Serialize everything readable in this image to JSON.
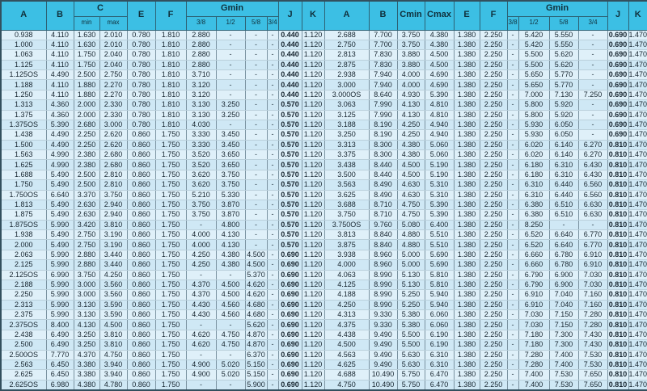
{
  "colors": {
    "header_bg": "#3cbfe4",
    "row_odd_bg": "#dff0f9",
    "row_even_bg": "#cfe8f5",
    "grid_vertical": "#7b93a1",
    "grid_horizontal": "#b9cfda",
    "outer_border": "#33505e",
    "text": "#16242e"
  },
  "table": {
    "header": {
      "left": {
        "a": "A",
        "b": "B",
        "c": "C",
        "c_min": "min",
        "c_max": "max",
        "e": "E",
        "f": "F",
        "gmin": "Gmin",
        "g38": "3/8",
        "g12": "1/2",
        "g58": "5/8",
        "g34": "3/4",
        "j": "J",
        "k": "K"
      },
      "right": {
        "a": "A",
        "b": "B",
        "cmin": "Cmin",
        "cmax": "Cmax",
        "e": "E",
        "f": "F",
        "gmin": "Gmin",
        "g38": "3/8",
        "g12": "1/2",
        "g58": "5/8",
        "g34": "3/4",
        "j": "J",
        "k": "K"
      }
    },
    "rows": [
      [
        "0.938",
        "4.110",
        "1.630",
        "2.010",
        "0.780",
        "1.810",
        "2.880",
        "-",
        "-",
        "-",
        "0.440",
        "1.120",
        "2.688",
        "7.700",
        "3.750",
        "4.380",
        "1.380",
        "2.250",
        "-",
        "5.420",
        "5.550",
        "-",
        "0.690",
        "1.470"
      ],
      [
        "1.000",
        "4.110",
        "1.630",
        "2.010",
        "0.780",
        "1.810",
        "2.880",
        "-",
        "-",
        "-",
        "0.440",
        "1.120",
        "2.750",
        "7.700",
        "3.750",
        "4.380",
        "1.380",
        "2.250",
        "-",
        "5.420",
        "5.550",
        "-",
        "0.690",
        "1.470"
      ],
      [
        "1.063",
        "4.110",
        "1.750",
        "2.040",
        "0.780",
        "1.810",
        "2.880",
        "-",
        "-",
        "-",
        "0.440",
        "1.120",
        "2.813",
        "7.830",
        "3.880",
        "4.500",
        "1.380",
        "2.250",
        "-",
        "5.500",
        "5.620",
        "-",
        "0.690",
        "1.470"
      ],
      [
        "1.125",
        "4.110",
        "1.750",
        "2.040",
        "0.780",
        "1.810",
        "2.880",
        "-",
        "-",
        "-",
        "0.440",
        "1.120",
        "2.875",
        "7.830",
        "3.880",
        "4.500",
        "1.380",
        "2.250",
        "-",
        "5.500",
        "5.620",
        "-",
        "0.690",
        "1.470"
      ],
      [
        "1.125OS",
        "4.490",
        "2.500",
        "2.750",
        "0.780",
        "1.810",
        "3.710",
        "-",
        "-",
        "-",
        "0.440",
        "1.120",
        "2.938",
        "7.940",
        "4.000",
        "4.690",
        "1.380",
        "2.250",
        "-",
        "5.650",
        "5.770",
        "-",
        "0.690",
        "1.470"
      ],
      [
        "1.188",
        "4.110",
        "1.880",
        "2.270",
        "0.780",
        "1.810",
        "3.120",
        "-",
        "-",
        "-",
        "0.440",
        "1.120",
        "3.000",
        "7.940",
        "4.000",
        "4.690",
        "1.380",
        "2.250",
        "-",
        "5.650",
        "5.770",
        "-",
        "0.690",
        "1.470"
      ],
      [
        "1.250",
        "4.110",
        "1.880",
        "2.270",
        "0.780",
        "1.810",
        "3.120",
        "-",
        "-",
        "-",
        "0.440",
        "1.120",
        "3.000OS",
        "8.640",
        "4.930",
        "5.390",
        "1.380",
        "2.250",
        "-",
        "7.000",
        "7.130",
        "7.250",
        "0.690",
        "1.470"
      ],
      [
        "1.313",
        "4.360",
        "2.000",
        "2.330",
        "0.780",
        "1.810",
        "3.130",
        "3.250",
        "-",
        "-",
        "0.570",
        "1.120",
        "3.063",
        "7.990",
        "4.130",
        "4.810",
        "1.380",
        "2.250",
        "-",
        "5.800",
        "5.920",
        "-",
        "0.690",
        "1.470"
      ],
      [
        "1.375",
        "4.360",
        "2.000",
        "2.330",
        "0.780",
        "1.810",
        "3.130",
        "3.250",
        "-",
        "-",
        "0.570",
        "1.120",
        "3.125",
        "7.990",
        "4.130",
        "4.810",
        "1.380",
        "2.250",
        "-",
        "5.800",
        "5.920",
        "-",
        "0.690",
        "1.470"
      ],
      [
        "1.375OS",
        "5.390",
        "2.680",
        "3.000",
        "0.780",
        "1.810",
        "4.030",
        "-",
        "-",
        "-",
        "0.570",
        "1.120",
        "3.188",
        "8.190",
        "4.250",
        "4.940",
        "1.380",
        "2.250",
        "-",
        "5.930",
        "6.050",
        "-",
        "0.690",
        "1.470"
      ],
      [
        "1.438",
        "4.490",
        "2.250",
        "2.620",
        "0.860",
        "1.750",
        "3.330",
        "3.450",
        "-",
        "-",
        "0.570",
        "1.120",
        "3.250",
        "8.190",
        "4.250",
        "4.940",
        "1.380",
        "2.250",
        "-",
        "5.930",
        "6.050",
        "-",
        "0.690",
        "1.470"
      ],
      [
        "1.500",
        "4.490",
        "2.250",
        "2.620",
        "0.860",
        "1.750",
        "3.330",
        "3.450",
        "-",
        "-",
        "0.570",
        "1.120",
        "3.313",
        "8.300",
        "4.380",
        "5.060",
        "1.380",
        "2.250",
        "-",
        "6.020",
        "6.140",
        "6.270",
        "0.810",
        "1.470"
      ],
      [
        "1.563",
        "4.990",
        "2.380",
        "2.680",
        "0.860",
        "1.750",
        "3.520",
        "3.650",
        "-",
        "-",
        "0.570",
        "1.120",
        "3.375",
        "8.300",
        "4.380",
        "5.060",
        "1.380",
        "2.250",
        "-",
        "6.020",
        "6.140",
        "6.270",
        "0.810",
        "1.470"
      ],
      [
        "1.625",
        "4.990",
        "2.380",
        "2.680",
        "0.860",
        "1.750",
        "3.520",
        "3.650",
        "-",
        "-",
        "0.570",
        "1.120",
        "3.438",
        "8.440",
        "4.500",
        "5.190",
        "1.380",
        "2.250",
        "-",
        "6.180",
        "6.310",
        "6.430",
        "0.810",
        "1.470"
      ],
      [
        "1.688",
        "5.490",
        "2.500",
        "2.810",
        "0.860",
        "1.750",
        "3.620",
        "3.750",
        "-",
        "-",
        "0.570",
        "1.120",
        "3.500",
        "8.440",
        "4.500",
        "5.190",
        "1.380",
        "2.250",
        "-",
        "6.180",
        "6.310",
        "6.430",
        "0.810",
        "1.470"
      ],
      [
        "1.750",
        "5.490",
        "2.500",
        "2.810",
        "0.860",
        "1.750",
        "3.620",
        "3.750",
        "-",
        "-",
        "0.570",
        "1.120",
        "3.563",
        "8.490",
        "4.630",
        "5.310",
        "1.380",
        "2.250",
        "-",
        "6.310",
        "6.440",
        "6.560",
        "0.810",
        "1.470"
      ],
      [
        "1.750OS",
        "6.640",
        "3.370",
        "3.750",
        "0.860",
        "1.750",
        "5.210",
        "5.330",
        "-",
        "-",
        "0.570",
        "1.120",
        "3.625",
        "8.490",
        "4.630",
        "5.310",
        "1.380",
        "2.250",
        "-",
        "6.310",
        "6.440",
        "6.560",
        "0.810",
        "1.470"
      ],
      [
        "1.813",
        "5.490",
        "2.630",
        "2.940",
        "0.860",
        "1.750",
        "3.750",
        "3.870",
        "-",
        "-",
        "0.570",
        "1.120",
        "3.688",
        "8.710",
        "4.750",
        "5.390",
        "1.380",
        "2.250",
        "-",
        "6.380",
        "6.510",
        "6.630",
        "0.810",
        "1.470"
      ],
      [
        "1.875",
        "5.490",
        "2.630",
        "2.940",
        "0.860",
        "1.750",
        "3.750",
        "3.870",
        "-",
        "-",
        "0.570",
        "1.120",
        "3.750",
        "8.710",
        "4.750",
        "5.390",
        "1.380",
        "2.250",
        "-",
        "6.380",
        "6.510",
        "6.630",
        "0.810",
        "1.470"
      ],
      [
        "1.875OS",
        "5.990",
        "3.420",
        "3.810",
        "0.860",
        "1.750",
        "-",
        "4.800",
        "-",
        "-",
        "0.570",
        "1.120",
        "3.750OS",
        "9.760",
        "5.080",
        "6.400",
        "1.380",
        "2.250",
        "-",
        "8.250",
        "-",
        "-",
        "0.810",
        "1.470"
      ],
      [
        "1.938",
        "5.490",
        "2.750",
        "3.190",
        "0.860",
        "1.750",
        "4.000",
        "4.130",
        "-",
        "-",
        "0.570",
        "1.120",
        "3.813",
        "8.840",
        "4.880",
        "5.510",
        "1.380",
        "2.250",
        "-",
        "6.520",
        "6.640",
        "6.770",
        "0.810",
        "1.470"
      ],
      [
        "2.000",
        "5.490",
        "2.750",
        "3.190",
        "0.860",
        "1.750",
        "4.000",
        "4.130",
        "-",
        "-",
        "0.570",
        "1.120",
        "3.875",
        "8.840",
        "4.880",
        "5.510",
        "1.380",
        "2.250",
        "-",
        "6.520",
        "6.640",
        "6.770",
        "0.810",
        "1.470"
      ],
      [
        "2.063",
        "5.990",
        "2.880",
        "3.440",
        "0.860",
        "1.750",
        "4.250",
        "4.380",
        "4.500",
        "-",
        "0.690",
        "1.120",
        "3.938",
        "8.960",
        "5.000",
        "5.690",
        "1.380",
        "2.250",
        "-",
        "6.660",
        "6.780",
        "6.910",
        "0.810",
        "1.470"
      ],
      [
        "2.125",
        "5.990",
        "2.880",
        "3.440",
        "0.860",
        "1.750",
        "4.250",
        "4.380",
        "4.500",
        "-",
        "0.690",
        "1.120",
        "4.000",
        "8.960",
        "5.000",
        "5.690",
        "1.380",
        "2.250",
        "-",
        "6.660",
        "6.780",
        "6.910",
        "0.810",
        "1.470"
      ],
      [
        "2.125OS",
        "6.990",
        "3.750",
        "4.250",
        "0.860",
        "1.750",
        "-",
        "-",
        "5.370",
        "-",
        "0.690",
        "1.120",
        "4.063",
        "8.990",
        "5.130",
        "5.810",
        "1.380",
        "2.250",
        "-",
        "6.790",
        "6.900",
        "7.030",
        "0.810",
        "1.470"
      ],
      [
        "2.188",
        "5.990",
        "3.000",
        "3.560",
        "0.860",
        "1.750",
        "4.370",
        "4.500",
        "4.620",
        "-",
        "0.690",
        "1.120",
        "4.125",
        "8.990",
        "5.130",
        "5.810",
        "1.380",
        "2.250",
        "-",
        "6.790",
        "6.900",
        "7.030",
        "0.810",
        "1.470"
      ],
      [
        "2.250",
        "5.990",
        "3.000",
        "3.560",
        "0.860",
        "1.750",
        "4.370",
        "4.500",
        "4.620",
        "-",
        "0.690",
        "1.120",
        "4.188",
        "8.990",
        "5.250",
        "5.940",
        "1.380",
        "2.250",
        "-",
        "6.910",
        "7.040",
        "7.160",
        "0.810",
        "1.470"
      ],
      [
        "2.313",
        "5.990",
        "3.130",
        "3.590",
        "0.860",
        "1.750",
        "4.430",
        "4.560",
        "4.680",
        "-",
        "0.690",
        "1.120",
        "4.250",
        "8.990",
        "5.250",
        "5.940",
        "1.380",
        "2.250",
        "-",
        "6.910",
        "7.040",
        "7.160",
        "0.810",
        "1.470"
      ],
      [
        "2.375",
        "5.990",
        "3.130",
        "3.590",
        "0.860",
        "1.750",
        "4.430",
        "4.560",
        "4.680",
        "-",
        "0.690",
        "1.120",
        "4.313",
        "9.330",
        "5.380",
        "6.060",
        "1.380",
        "2.250",
        "-",
        "7.030",
        "7.150",
        "7.280",
        "0.810",
        "1.470"
      ],
      [
        "2.375OS",
        "8.400",
        "4.130",
        "4.500",
        "0.860",
        "1.750",
        "-",
        "-",
        "5.620",
        "-",
        "0.690",
        "1.120",
        "4.375",
        "9.330",
        "5.380",
        "6.060",
        "1.380",
        "2.250",
        "-",
        "7.030",
        "7.150",
        "7.280",
        "0.810",
        "1.470"
      ],
      [
        "2.438",
        "6.490",
        "3.250",
        "3.810",
        "0.860",
        "1.750",
        "4.620",
        "4.750",
        "4.870",
        "-",
        "0.690",
        "1.120",
        "4.438",
        "9.490",
        "5.500",
        "6.190",
        "1.380",
        "2.250",
        "-",
        "7.180",
        "7.300",
        "7.430",
        "0.810",
        "1.470"
      ],
      [
        "2.500",
        "6.490",
        "3.250",
        "3.810",
        "0.860",
        "1.750",
        "4.620",
        "4.750",
        "4.870",
        "-",
        "0.690",
        "1.120",
        "4.500",
        "9.490",
        "5.500",
        "6.190",
        "1.380",
        "2.250",
        "-",
        "7.180",
        "7.300",
        "7.430",
        "0.810",
        "1.470"
      ],
      [
        "2.500OS",
        "7.770",
        "4.370",
        "4.750",
        "0.860",
        "1.750",
        "-",
        "-",
        "6.370",
        "-",
        "0.690",
        "1.120",
        "4.563",
        "9.490",
        "5.630",
        "6.310",
        "1.380",
        "2.250",
        "-",
        "7.280",
        "7.400",
        "7.530",
        "0.810",
        "1.470"
      ],
      [
        "2.563",
        "6.450",
        "3.380",
        "3.940",
        "0.860",
        "1.750",
        "4.900",
        "5.020",
        "5.150",
        "-",
        "0.690",
        "1.120",
        "4.625",
        "9.490",
        "5.630",
        "6.310",
        "1.380",
        "2.250",
        "-",
        "7.280",
        "7.400",
        "7.530",
        "0.810",
        "1.470"
      ],
      [
        "2.625",
        "6.450",
        "3.380",
        "3.940",
        "0.860",
        "1.750",
        "4.900",
        "5.020",
        "5.150",
        "-",
        "0.690",
        "1.120",
        "4.688",
        "10.490",
        "5.750",
        "6.470",
        "1.380",
        "2.250",
        "-",
        "7.400",
        "7.530",
        "7.650",
        "0.810",
        "1.470"
      ],
      [
        "2.625OS",
        "6.980",
        "4.380",
        "4.780",
        "0.860",
        "1.750",
        "-",
        "-",
        "5.900",
        "-",
        "0.690",
        "1.120",
        "4.750",
        "10.490",
        "5.750",
        "6.470",
        "1.380",
        "2.250",
        "-",
        "7.400",
        "7.530",
        "7.650",
        "0.810",
        "1.470"
      ]
    ]
  }
}
